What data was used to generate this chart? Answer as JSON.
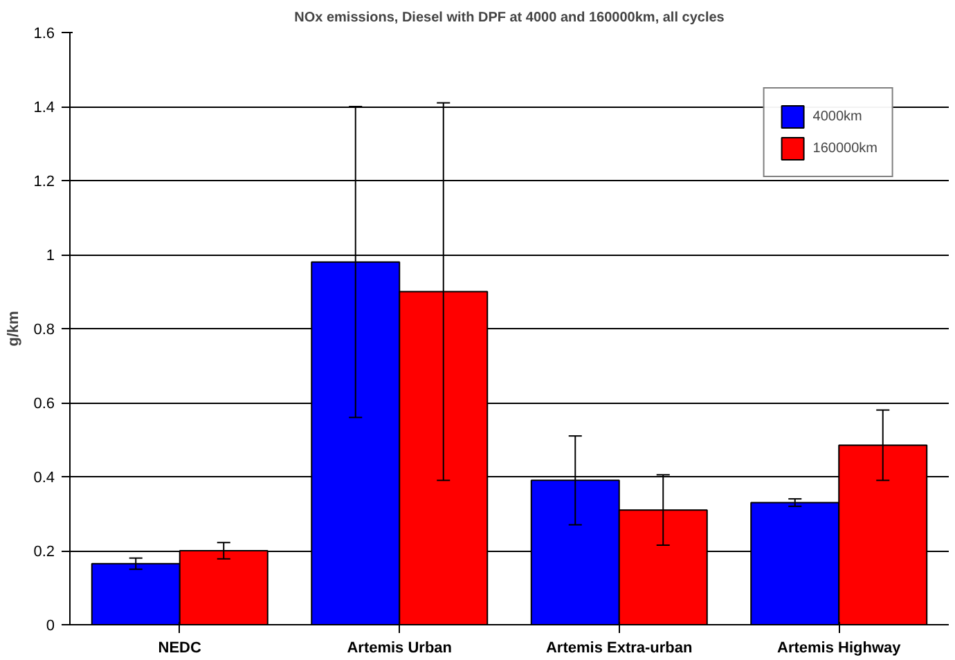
{
  "chart_data": {
    "type": "bar",
    "title": "NOx emissions, Diesel with DPF at 4000 and 160000km, all cycles",
    "ylabel": "g/km",
    "categories": [
      "NEDC",
      "Artemis Urban",
      "Artemis Extra-urban",
      "Artemis Highway"
    ],
    "series": [
      {
        "name": "4000km",
        "color": "#0000ff",
        "values": [
          0.165,
          0.98,
          0.39,
          0.33
        ],
        "errors": [
          0.015,
          0.42,
          0.12,
          0.01
        ]
      },
      {
        "name": "160000km",
        "color": "#ff0000",
        "values": [
          0.2,
          0.9,
          0.31,
          0.485
        ],
        "errors": [
          0.022,
          0.51,
          0.095,
          0.095
        ]
      }
    ],
    "ylim": [
      0,
      1.6
    ],
    "yticks": [
      0,
      0.2,
      0.4,
      0.6,
      0.8,
      1,
      1.2,
      1.4,
      1.6
    ],
    "grid": "y",
    "legend": "top right"
  }
}
